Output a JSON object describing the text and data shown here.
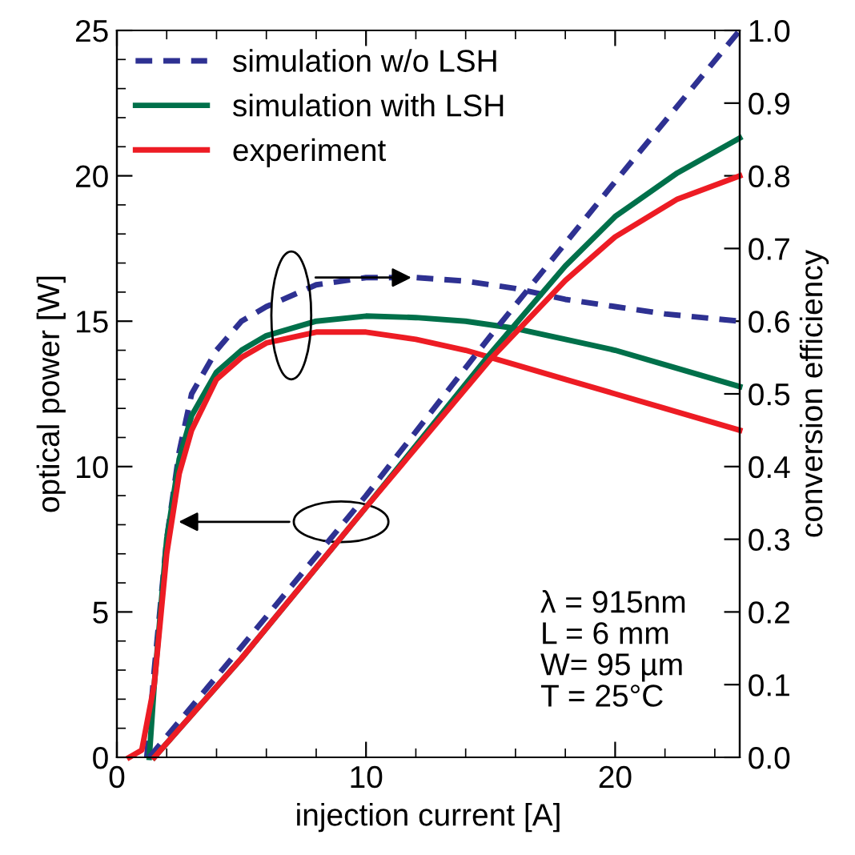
{
  "chart_data": {
    "type": "line",
    "xlabel": "injection current [A]",
    "ylabel": "optical power [W]",
    "y2label": "conversion efficiency",
    "xlim": [
      0,
      25
    ],
    "ylim": [
      0,
      25
    ],
    "y2lim": [
      0,
      1
    ],
    "xticks": [
      0,
      {
        "value": 2,
        "label": null
      },
      {
        "value": 4,
        "label": null
      },
      {
        "value": 6,
        "label": null
      },
      {
        "value": 8,
        "label": null
      },
      10,
      {
        "value": 12,
        "label": null
      },
      {
        "value": 14,
        "label": null
      },
      {
        "value": 16,
        "label": null
      },
      {
        "value": 18,
        "label": null
      },
      20,
      {
        "value": 22,
        "label": null
      },
      {
        "value": 24,
        "label": null
      }
    ],
    "yticks": [
      0,
      {
        "value": 1,
        "label": null
      },
      {
        "value": 2,
        "label": null
      },
      {
        "value": 3,
        "label": null
      },
      {
        "value": 4,
        "label": null
      },
      5,
      {
        "value": 6,
        "label": null
      },
      {
        "value": 7,
        "label": null
      },
      {
        "value": 8,
        "label": null
      },
      {
        "value": 9,
        "label": null
      },
      10,
      {
        "value": 11,
        "label": null
      },
      {
        "value": 12,
        "label": null
      },
      {
        "value": 13,
        "label": null
      },
      {
        "value": 14,
        "label": null
      },
      15,
      {
        "value": 16,
        "label": null
      },
      {
        "value": 17,
        "label": null
      },
      {
        "value": 18,
        "label": null
      },
      {
        "value": 19,
        "label": null
      },
      20,
      {
        "value": 21,
        "label": null
      },
      {
        "value": 22,
        "label": null
      },
      {
        "value": 23,
        "label": null
      },
      {
        "value": 24,
        "label": null
      },
      25
    ],
    "y2ticks": [
      {
        "value": 0,
        "label": "0.0"
      },
      0.1,
      0.2,
      0.3,
      0.4,
      0.5,
      0.6,
      0.7,
      0.8,
      0.9,
      {
        "value": 1,
        "label": "1.0"
      }
    ],
    "legend": "top left",
    "grid": false,
    "series": [
      {
        "name": "simulation w/o LSH",
        "color": "#2e3192",
        "line_style": "dashed",
        "x": [
          1.3,
          5,
          10,
          15,
          20,
          25
        ],
        "values": [
          0,
          3.8,
          9.0,
          14.5,
          19.8,
          25
        ]
      },
      {
        "name": "simulation with LSH",
        "color": "#00704a",
        "line_style": "solid",
        "x": [
          1.5,
          5,
          10,
          15,
          18,
          20,
          22.5,
          25
        ],
        "values": [
          0,
          3.4,
          8.6,
          13.9,
          16.9,
          18.6,
          20.1,
          21.3
        ]
      },
      {
        "name": "experiment",
        "color": "#ed1c24",
        "line_style": "solid",
        "x": [
          1.5,
          5,
          10,
          15,
          18,
          20,
          22.5,
          25
        ],
        "values": [
          0,
          3.4,
          8.6,
          13.7,
          16.4,
          17.9,
          19.2,
          20.0
        ]
      },
      {
        "axis": "y2",
        "color": "#2e3192",
        "line_style": "dashed",
        "x": [
          1.2,
          1.5,
          2,
          2.5,
          3,
          4,
          5,
          6,
          8,
          10,
          12,
          14,
          16,
          18,
          20,
          22,
          25
        ],
        "values": [
          0,
          0.12,
          0.3,
          0.42,
          0.5,
          0.56,
          0.6,
          0.62,
          0.65,
          0.66,
          0.66,
          0.655,
          0.645,
          0.63,
          0.62,
          0.61,
          0.6
        ]
      },
      {
        "axis": "y2",
        "color": "#00704a",
        "line_style": "solid",
        "x": [
          1.3,
          1.5,
          2,
          2.5,
          3,
          4,
          5,
          6,
          8,
          10,
          12,
          14,
          16,
          18,
          20,
          22,
          25
        ],
        "values": [
          0,
          0.1,
          0.3,
          0.41,
          0.47,
          0.53,
          0.56,
          0.58,
          0.6,
          0.607,
          0.605,
          0.6,
          0.59,
          0.575,
          0.56,
          0.54,
          0.51
        ]
      },
      {
        "axis": "y2",
        "color": "#ed1c24",
        "line_style": "solid",
        "x": [
          0.5,
          1,
          1.5,
          2,
          2.5,
          3,
          4,
          5,
          6,
          8,
          10,
          12,
          14,
          16,
          18,
          20,
          22,
          25
        ],
        "values": [
          0,
          0.01,
          0.1,
          0.28,
          0.39,
          0.45,
          0.52,
          0.55,
          0.57,
          0.585,
          0.585,
          0.575,
          0.56,
          0.54,
          0.52,
          0.5,
          0.48,
          0.45
        ]
      }
    ],
    "annotations": [
      "λ = 915nm\nL = 6 mm\nW= 95 µm\nT = 25°C"
    ]
  }
}
